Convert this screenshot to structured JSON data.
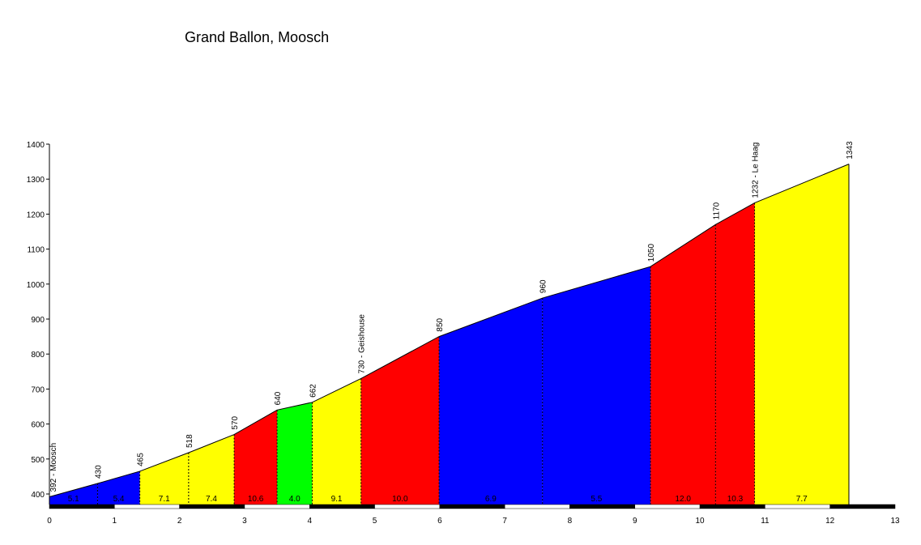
{
  "chart_data": {
    "type": "area",
    "title": "Grand Ballon, Moosch",
    "xlabel": "",
    "ylabel": "",
    "xlim": [
      0,
      13
    ],
    "ylim": [
      370,
      1400
    ],
    "x_ticks": [
      0,
      1,
      2,
      3,
      4,
      5,
      6,
      7,
      8,
      9,
      10,
      11,
      12,
      13
    ],
    "y_ticks": [
      400,
      500,
      600,
      700,
      800,
      900,
      1000,
      1100,
      1200,
      1300,
      1400
    ],
    "grid": false,
    "profile_points": [
      {
        "km": 0,
        "alt": 392,
        "label": "392 - Moosch"
      },
      {
        "km": 0.74,
        "alt": 430,
        "label": "430"
      },
      {
        "km": 1.39,
        "alt": 465,
        "label": "465"
      },
      {
        "km": 2.14,
        "alt": 518,
        "label": "518"
      },
      {
        "km": 2.84,
        "alt": 570,
        "label": "570"
      },
      {
        "km": 3.5,
        "alt": 640,
        "label": "640"
      },
      {
        "km": 4.04,
        "alt": 662,
        "label": "662"
      },
      {
        "km": 4.79,
        "alt": 730,
        "label": "730 - Geishouse"
      },
      {
        "km": 5.99,
        "alt": 850,
        "label": "850"
      },
      {
        "km": 7.58,
        "alt": 960,
        "label": "960"
      },
      {
        "km": 9.24,
        "alt": 1050,
        "label": "1050"
      },
      {
        "km": 10.24,
        "alt": 1170,
        "label": "1170"
      },
      {
        "km": 10.84,
        "alt": 1232,
        "label": "1232 - Le Haag"
      },
      {
        "km": 12.29,
        "alt": 1343,
        "label": "1343"
      }
    ],
    "segments": [
      {
        "gradient": "5.1",
        "color": "#0000ff"
      },
      {
        "gradient": "5.4",
        "color": "#0000ff"
      },
      {
        "gradient": "7.1",
        "color": "#ffff00"
      },
      {
        "gradient": "7.4",
        "color": "#ffff00"
      },
      {
        "gradient": "10.6",
        "color": "#ff0000"
      },
      {
        "gradient": "4.0",
        "color": "#00ff00"
      },
      {
        "gradient": "9.1",
        "color": "#ffff00"
      },
      {
        "gradient": "10.0",
        "color": "#ff0000"
      },
      {
        "gradient": "6.9",
        "color": "#0000ff"
      },
      {
        "gradient": "5.5",
        "color": "#0000ff"
      },
      {
        "gradient": "12.0",
        "color": "#ff0000"
      },
      {
        "gradient": "10.3",
        "color": "#ff0000"
      },
      {
        "gradient": "7.7",
        "color": "#ffff00"
      }
    ]
  }
}
